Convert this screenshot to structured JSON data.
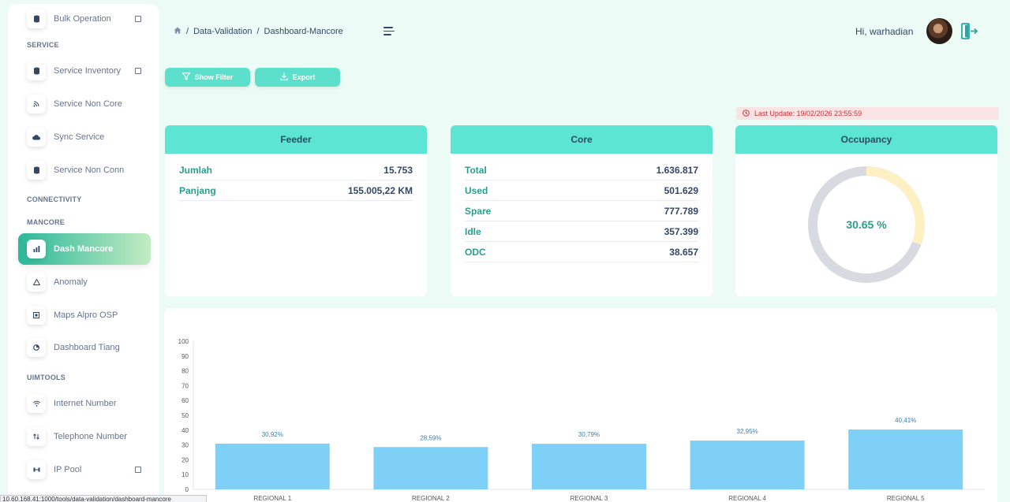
{
  "sidebar": {
    "items": [
      {
        "label": "Bulk Operation",
        "icon": "database-icon"
      },
      {
        "label": "Service Inventory",
        "icon": "database-icon"
      },
      {
        "label": "Service Non Core",
        "icon": "rss-icon"
      },
      {
        "label": "Sync Service",
        "icon": "cloud-icon"
      },
      {
        "label": "Service Non Conn",
        "icon": "database-icon"
      },
      {
        "label": "Dash Mancore",
        "icon": "bar-chart-icon"
      },
      {
        "label": "Anomaly",
        "icon": "warning-icon"
      },
      {
        "label": "Maps Alpro OSP",
        "icon": "map-icon"
      },
      {
        "label": "Dashboard Tiang",
        "icon": "pie-icon"
      },
      {
        "label": "Internet Number",
        "icon": "wifi-icon"
      },
      {
        "label": "Telephone Number",
        "icon": "transfer-icon"
      },
      {
        "label": "IP Pool",
        "icon": "network-icon"
      }
    ],
    "sections": {
      "service": "SERVICE",
      "connectivity": "CONNECTIVITY",
      "mancore": "MANCORE",
      "uimtools": "UIMTOOLS"
    }
  },
  "header": {
    "breadcrumb": [
      "Data-Validation",
      "Dashboard-Mancore"
    ],
    "separator": "/",
    "greeting": "Hi, warhadian"
  },
  "actions": {
    "show_filter": "Show Filter",
    "export": "Export"
  },
  "last_update": "Last Update: 19/02/2026 23:55:59",
  "feeder": {
    "title": "Feeder",
    "rows": [
      {
        "key": "Jumlah",
        "value": "15.753"
      },
      {
        "key": "Panjang",
        "value": "155.005,22 KM"
      }
    ]
  },
  "core": {
    "title": "Core",
    "rows": [
      {
        "key": "Total",
        "value": "1.636.817"
      },
      {
        "key": "Used",
        "value": "501.629"
      },
      {
        "key": "Spare",
        "value": "777.789"
      },
      {
        "key": "Idle",
        "value": "357.399"
      },
      {
        "key": "ODC",
        "value": "38.657"
      }
    ]
  },
  "occupancy": {
    "title": "Occupancy",
    "label": "30.65 %",
    "value": 30.65
  },
  "colors": {
    "accent": "#5ce5d3",
    "bar": "#7ed0f7",
    "gauge_track": "#d7dbe1",
    "gauge_fill": "#fdf0c2"
  },
  "chart_data": {
    "type": "bar",
    "categories": [
      "REGIONAL 1",
      "REGIONAL 2",
      "REGIONAL 3",
      "REGIONAL 4",
      "REGIONAL 5"
    ],
    "values": [
      30.92,
      28.59,
      30.79,
      32.95,
      40.41
    ],
    "data_labels": [
      "30,92%",
      "28,59%",
      "30,79%",
      "32,95%",
      "40,41%"
    ],
    "yticks": [
      "0",
      "10",
      "20",
      "30",
      "40",
      "50",
      "60",
      "70",
      "80",
      "90",
      "100"
    ],
    "ylim": [
      0,
      100
    ],
    "title": "",
    "xlabel": "",
    "ylabel": "",
    "grid": false
  },
  "statusbar": "10.60.168.41:1000/tools/data-validation/dashboard-mancore"
}
